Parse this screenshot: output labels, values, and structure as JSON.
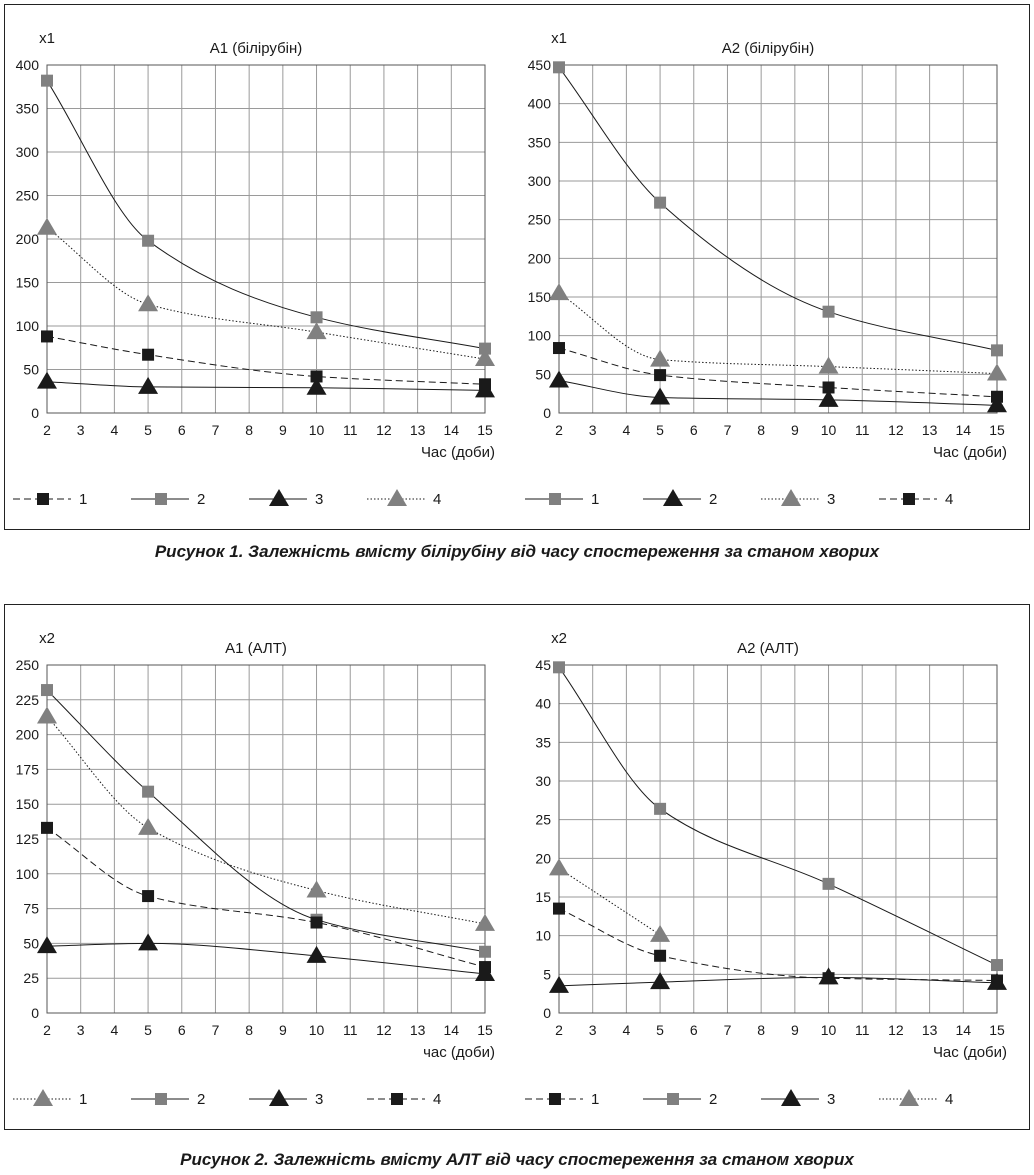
{
  "figures": [
    {
      "caption": "Рисунок 1. Залежність вмісту білірубіну від часу спостереження за станом хворих",
      "charts": [
        {
          "type": "line",
          "title": "А1 (білірубін)",
          "ylabel": "x1",
          "xlabel": "Час (доби)",
          "x_ticks": [
            2,
            3,
            4,
            5,
            6,
            7,
            8,
            9,
            10,
            11,
            12,
            13,
            14,
            15
          ],
          "y_ticks": [
            0,
            50,
            100,
            150,
            200,
            250,
            300,
            350,
            400
          ],
          "xlim": [
            2,
            15
          ],
          "ylim": [
            0,
            400
          ],
          "grid": true,
          "legend_placement": "bottom",
          "series": [
            {
              "name": "1",
              "marker": "square",
              "color": "#1a1a1a",
              "line": "dashed",
              "x": [
                2,
                5,
                10,
                15
              ],
              "y": [
                88,
                67,
                42,
                33
              ]
            },
            {
              "name": "2",
              "marker": "square",
              "color": "#808080",
              "line": "solid",
              "x": [
                2,
                5,
                10,
                15
              ],
              "y": [
                382,
                198,
                110,
                74
              ]
            },
            {
              "name": "3",
              "marker": "triangle",
              "color": "#1a1a1a",
              "line": "solid",
              "x": [
                2,
                5,
                10,
                15
              ],
              "y": [
                36,
                30,
                29,
                26
              ]
            },
            {
              "name": "4",
              "marker": "triangle",
              "color": "#808080",
              "line": "dotted",
              "x": [
                2,
                5,
                10,
                15
              ],
              "y": [
                213,
                125,
                93,
                62
              ]
            }
          ]
        },
        {
          "type": "line",
          "title": "А2 (білірубін)",
          "ylabel": "x1",
          "xlabel": "Час (доби)",
          "x_ticks": [
            2,
            3,
            4,
            5,
            6,
            7,
            8,
            9,
            10,
            11,
            12,
            13,
            14,
            15
          ],
          "y_ticks": [
            0,
            50,
            100,
            150,
            200,
            250,
            300,
            350,
            400,
            450
          ],
          "xlim": [
            2,
            15
          ],
          "ylim": [
            0,
            450
          ],
          "grid": true,
          "legend_placement": "bottom",
          "series": [
            {
              "name": "1",
              "marker": "square",
              "color": "#808080",
              "line": "solid",
              "x": [
                2,
                5,
                10,
                15
              ],
              "y": [
                447,
                272,
                131,
                81
              ]
            },
            {
              "name": "2",
              "marker": "triangle",
              "color": "#1a1a1a",
              "line": "solid",
              "x": [
                2,
                5,
                10,
                15
              ],
              "y": [
                42,
                20,
                17,
                10
              ]
            },
            {
              "name": "3",
              "marker": "triangle",
              "color": "#808080",
              "line": "dotted",
              "x": [
                2,
                5,
                10,
                15
              ],
              "y": [
                155,
                69,
                60,
                51
              ]
            },
            {
              "name": "4",
              "marker": "square",
              "color": "#1a1a1a",
              "line": "dashed",
              "x": [
                2,
                5,
                10,
                15
              ],
              "y": [
                84,
                49,
                33,
                21
              ]
            }
          ]
        }
      ]
    },
    {
      "caption": "Рисунок 2. Залежність вмісту АЛТ від часу спостереження за станом хворих",
      "charts": [
        {
          "type": "line",
          "title": "А1 (АЛТ)",
          "ylabel": "x2",
          "xlabel": "час (доби)",
          "x_ticks": [
            2,
            3,
            4,
            5,
            6,
            7,
            8,
            9,
            10,
            11,
            12,
            13,
            14,
            15
          ],
          "y_ticks": [
            0,
            25,
            50,
            75,
            100,
            125,
            150,
            175,
            200,
            225,
            250
          ],
          "xlim": [
            2,
            15
          ],
          "ylim": [
            0,
            250
          ],
          "grid": true,
          "legend_placement": "bottom",
          "series": [
            {
              "name": "1",
              "marker": "triangle",
              "color": "#808080",
              "line": "dotted",
              "x": [
                2,
                5,
                10,
                15
              ],
              "y": [
                213,
                133,
                88,
                64
              ]
            },
            {
              "name": "2",
              "marker": "square",
              "color": "#808080",
              "line": "solid",
              "x": [
                2,
                5,
                10,
                15
              ],
              "y": [
                232,
                159,
                67,
                44
              ]
            },
            {
              "name": "3",
              "marker": "triangle",
              "color": "#1a1a1a",
              "line": "solid",
              "x": [
                2,
                5,
                10,
                15
              ],
              "y": [
                48,
                50,
                41,
                28
              ]
            },
            {
              "name": "4",
              "marker": "square",
              "color": "#1a1a1a",
              "line": "dashed",
              "x": [
                2,
                5,
                10,
                15
              ],
              "y": [
                133,
                84,
                65,
                33
              ]
            }
          ]
        },
        {
          "type": "line",
          "title": "А2 (АЛТ)",
          "ylabel": "x2",
          "xlabel": "Час (доби)",
          "x_ticks": [
            2,
            3,
            4,
            5,
            6,
            7,
            8,
            9,
            10,
            11,
            12,
            13,
            14,
            15
          ],
          "y_ticks": [
            0,
            5,
            10,
            15,
            20,
            25,
            30,
            35,
            40,
            45
          ],
          "xlim": [
            2,
            15
          ],
          "ylim": [
            0,
            45
          ],
          "grid": true,
          "legend_placement": "bottom",
          "series": [
            {
              "name": "1",
              "marker": "square",
              "color": "#1a1a1a",
              "line": "dashed",
              "x": [
                2,
                5,
                10,
                15
              ],
              "y": [
                13.5,
                7.4,
                4.5,
                4.2
              ]
            },
            {
              "name": "2",
              "marker": "square",
              "color": "#808080",
              "line": "solid",
              "x": [
                2,
                5,
                10,
                15
              ],
              "y": [
                44.7,
                26.4,
                16.7,
                6.2
              ]
            },
            {
              "name": "3",
              "marker": "triangle",
              "color": "#1a1a1a",
              "line": "solid",
              "x": [
                2,
                5,
                10,
                15
              ],
              "y": [
                3.5,
                4.0,
                4.6,
                3.9
              ]
            },
            {
              "name": "4",
              "marker": "triangle",
              "color": "#808080",
              "line": "dotted",
              "x": [
                2,
                5
              ],
              "y": [
                18.7,
                10.1
              ]
            }
          ]
        }
      ]
    }
  ]
}
